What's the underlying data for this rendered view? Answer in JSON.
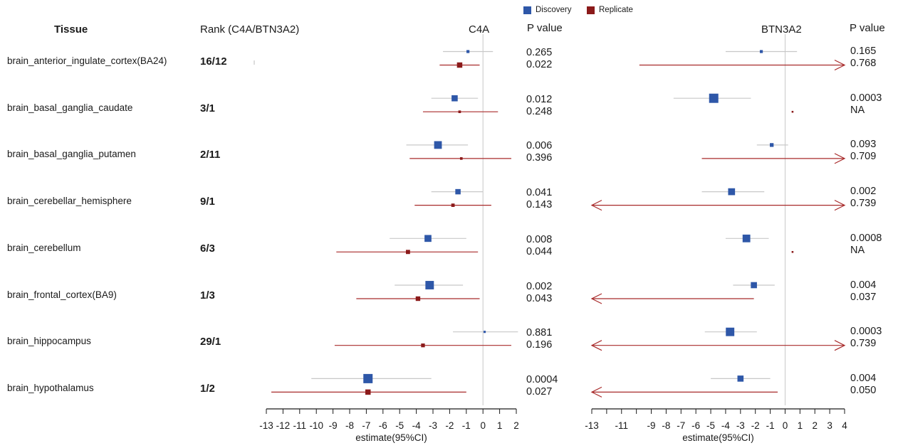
{
  "headers": {
    "tissue": "Tissue",
    "rank": "Rank (C4A/BTN3A2)",
    "c4a": "C4A",
    "c4a_p": "P value",
    "btn": "BTN3A2",
    "btn_p": "P value"
  },
  "legend": [
    {
      "name": "Discovery",
      "color": "#2e57a8"
    },
    {
      "name": "Replicate",
      "color": "#8b1a1a"
    }
  ],
  "colors": {
    "discovery": "#2e57a8",
    "replicate": "#8b1a1a",
    "ci_discovery": "#c8c8c8",
    "ci_replicate": "#a82a2a",
    "zero_line": "#c8c8c8",
    "axis": "#1a1a1a"
  },
  "rows": [
    {
      "tissue": "brain_anterior_ingulate_cortex(BA24)",
      "rank": "16/12",
      "c4a_p": [
        "0.265",
        "0.022"
      ],
      "btn_p": [
        "0.165",
        "0.768"
      ]
    },
    {
      "tissue": "brain_basal_ganglia_caudate",
      "rank": "3/1",
      "c4a_p": [
        "0.012",
        "0.248"
      ],
      "btn_p": [
        "0.0003",
        "NA"
      ]
    },
    {
      "tissue": "brain_basal_ganglia_putamen",
      "rank": "2/11",
      "c4a_p": [
        "0.006",
        "0.396"
      ],
      "btn_p": [
        "0.093",
        "0.709"
      ]
    },
    {
      "tissue": "brain_cerebellar_hemisphere",
      "rank": "9/1",
      "c4a_p": [
        "0.041",
        "0.143"
      ],
      "btn_p": [
        "0.002",
        "0.739"
      ]
    },
    {
      "tissue": "brain_cerebellum",
      "rank": "6/3",
      "c4a_p": [
        "0.008",
        "0.044"
      ],
      "btn_p": [
        "0.0008",
        "NA"
      ]
    },
    {
      "tissue": "brain_frontal_cortex(BA9)",
      "rank": "1/3",
      "c4a_p": [
        "0.002",
        "0.043"
      ],
      "btn_p": [
        "0.004",
        "0.037"
      ]
    },
    {
      "tissue": "brain_hippocampus",
      "rank": "29/1",
      "c4a_p": [
        "0.881",
        "0.196"
      ],
      "btn_p": [
        "0.0003",
        "0.739"
      ]
    },
    {
      "tissue": "brain_hypothalamus",
      "rank": "1/2",
      "c4a_p": [
        "0.0004",
        "0.027"
      ],
      "btn_p": [
        "0.004",
        "0.050"
      ]
    }
  ],
  "chart_data": [
    {
      "type": "forest",
      "title": "C4A",
      "xlabel": "estimate(95%CI)",
      "xlim": [
        -13,
        2
      ],
      "xticks": [
        "-13",
        "-12",
        "-11",
        "-10",
        "-9",
        "-8",
        "-7",
        "-6",
        "-5",
        "-4",
        "-3",
        "-2",
        "-1",
        "0",
        "1",
        "2"
      ],
      "categories": [
        "brain_anterior_ingulate_cortex(BA24)",
        "brain_basal_ganglia_caudate",
        "brain_basal_ganglia_putamen",
        "brain_cerebellar_hemisphere",
        "brain_cerebellum",
        "brain_frontal_cortex(BA9)",
        "brain_hippocampus",
        "brain_hypothalamus"
      ],
      "series": [
        {
          "name": "Discovery",
          "estimate": [
            -0.9,
            -1.7,
            -2.7,
            -1.5,
            -3.3,
            -3.2,
            0.1,
            -6.9
          ],
          "lower": [
            -2.4,
            -3.1,
            -4.6,
            -3.1,
            -5.6,
            -5.3,
            -1.8,
            -10.3
          ],
          "upper": [
            0.6,
            -0.3,
            -0.9,
            0.0,
            -1.0,
            -1.2,
            2.1,
            -3.1
          ],
          "weight": [
            0.2,
            0.6,
            0.8,
            0.5,
            0.7,
            0.9,
            0.1,
            1.0
          ]
        },
        {
          "name": "Replicate",
          "estimate": [
            -1.4,
            -1.4,
            -1.3,
            -1.8,
            -4.5,
            -3.9,
            -3.6,
            -6.9
          ],
          "lower": [
            -2.6,
            -3.6,
            -4.4,
            -4.1,
            -8.8,
            -7.6,
            -8.9,
            -12.7
          ],
          "upper": [
            -0.2,
            0.9,
            1.7,
            0.5,
            -0.3,
            -0.2,
            1.7,
            -1.0
          ],
          "weight": [
            0.5,
            0.15,
            0.15,
            0.25,
            0.35,
            0.4,
            0.3,
            0.5
          ]
        }
      ]
    },
    {
      "type": "forest",
      "title": "BTN3A2",
      "xlabel": "estimate(95%CI)",
      "xlim": [
        -13,
        4
      ],
      "xticks": [
        "-13",
        "-11",
        "-9",
        "-8",
        "-7",
        "-6",
        "-5",
        "-4",
        "-3",
        "-2",
        "-1",
        "0",
        "1",
        "2",
        "3",
        "4"
      ],
      "categories": [
        "brain_anterior_ingulate_cortex(BA24)",
        "brain_basal_ganglia_caudate",
        "brain_basal_ganglia_putamen",
        "brain_cerebellar_hemisphere",
        "brain_cerebellum",
        "brain_frontal_cortex(BA9)",
        "brain_hippocampus",
        "brain_hypothalamus"
      ],
      "series": [
        {
          "name": "Discovery",
          "estimate": [
            -1.6,
            -4.8,
            -0.9,
            -3.6,
            -2.6,
            -2.1,
            -3.7,
            -3.0
          ],
          "lower": [
            -4.0,
            -7.5,
            -1.9,
            -5.6,
            -4.0,
            -3.5,
            -5.4,
            -5.0
          ],
          "upper": [
            0.8,
            -2.3,
            0.2,
            -1.4,
            -1.1,
            -0.7,
            -1.9,
            -1.0
          ],
          "weight": [
            0.2,
            1.0,
            0.3,
            0.7,
            0.8,
            0.6,
            0.9,
            0.6
          ]
        },
        {
          "name": "Replicate",
          "estimate": [
            null,
            0.5,
            null,
            null,
            0.5,
            null,
            null,
            null
          ],
          "lower": [
            -9.8,
            null,
            -5.6,
            -13,
            null,
            -13,
            -13,
            -13
          ],
          "upper": [
            4,
            null,
            4,
            4,
            null,
            -2.1,
            4,
            -0.5
          ],
          "arrow_left": [
            false,
            false,
            false,
            true,
            false,
            true,
            true,
            true
          ],
          "arrow_right": [
            true,
            false,
            true,
            true,
            false,
            false,
            true,
            false
          ],
          "weight": [
            0,
            0.05,
            0,
            0,
            0.05,
            0,
            0,
            0
          ]
        }
      ]
    }
  ]
}
